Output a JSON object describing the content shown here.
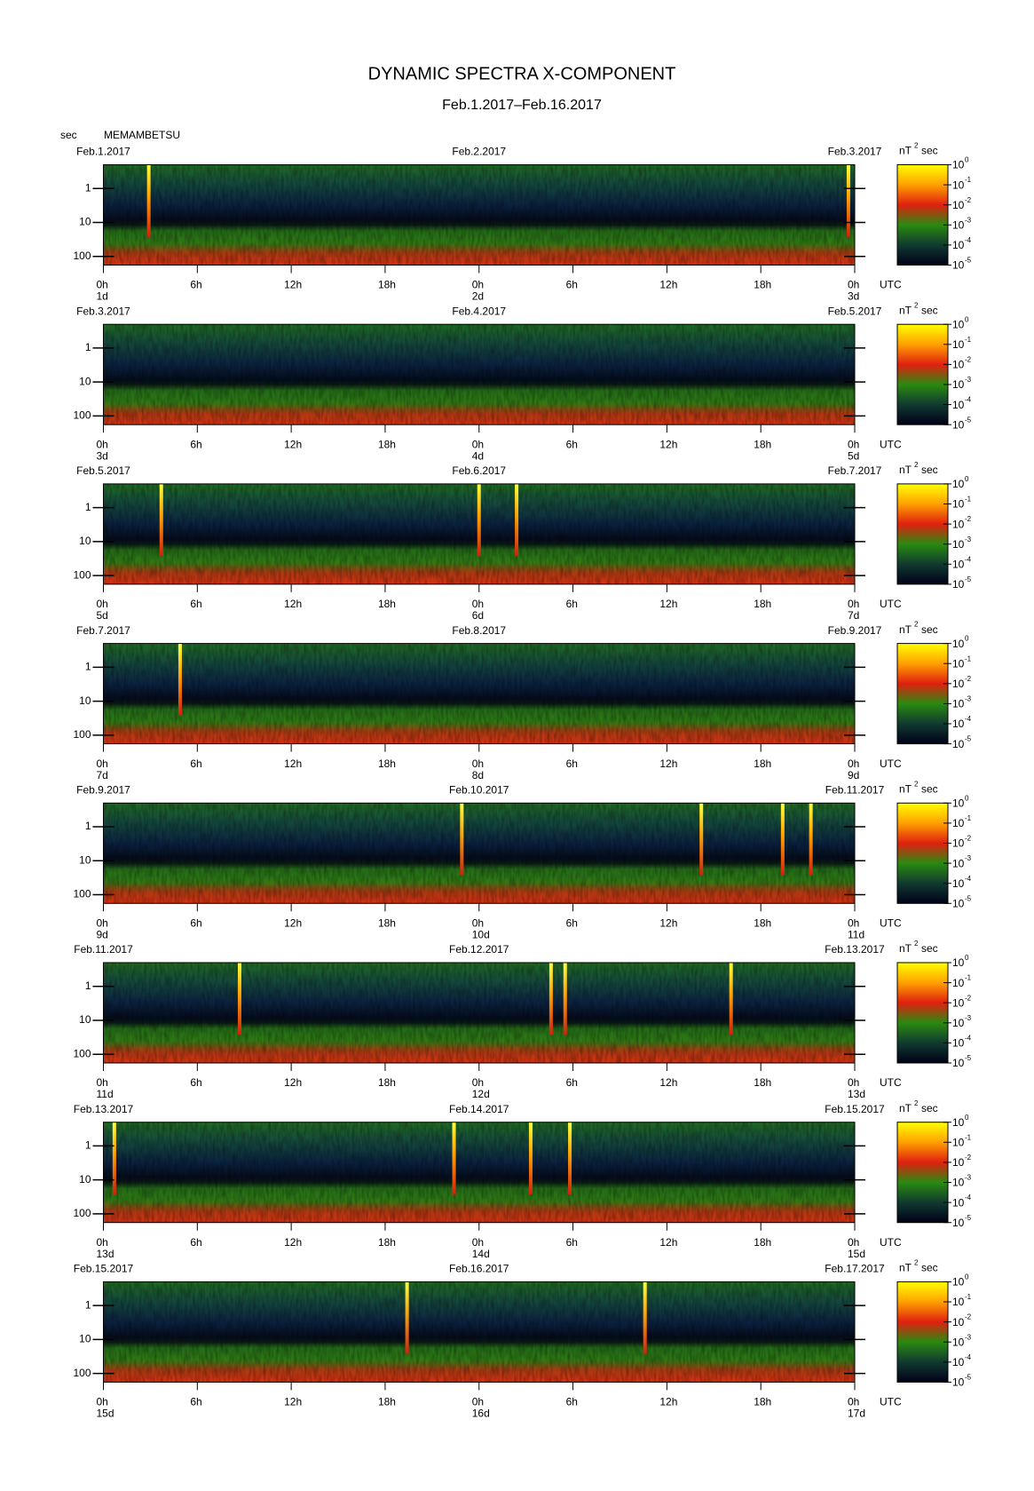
{
  "title": "DYNAMIC SPECTRA X-COMPONENT",
  "subtitle": "Feb.1.2017–Feb.16.2017",
  "y_unit": "sec",
  "station": "MEMAMBETSU",
  "colorbar": {
    "unit": "nT",
    "unit_exp": "2",
    "unit_tail": "sec",
    "scale": "log",
    "lim": [
      1e-05,
      1
    ],
    "ticks": [
      {
        "value": 1,
        "base": "10",
        "exp": "0"
      },
      {
        "value": 0.1,
        "base": "10",
        "exp": "-1"
      },
      {
        "value": 0.01,
        "base": "10",
        "exp": "-2"
      },
      {
        "value": 0.001,
        "base": "10",
        "exp": "-3"
      },
      {
        "value": 0.0001,
        "base": "10",
        "exp": "-4"
      },
      {
        "value": 1e-05,
        "base": "10",
        "exp": "-5"
      }
    ]
  },
  "chart_data": [
    {
      "type": "spectrogram",
      "dates": [
        "Feb.1.2017",
        "Feb.2.2017",
        "Feb.3.2017"
      ],
      "xlim": [
        0,
        48
      ],
      "xticks": [
        {
          "value": 0,
          "label": "0h"
        },
        {
          "value": 6,
          "label": "6h"
        },
        {
          "value": 12,
          "label": "12h"
        },
        {
          "value": 18,
          "label": "18h"
        },
        {
          "value": 24,
          "label": "0h"
        },
        {
          "value": 30,
          "label": "6h"
        },
        {
          "value": 36,
          "label": "12h"
        },
        {
          "value": 42,
          "label": "18h"
        },
        {
          "value": 48,
          "label": "0h"
        }
      ],
      "x_unit": "UTC",
      "day_ticks": [
        {
          "value": 0,
          "label": "1d"
        },
        {
          "value": 24,
          "label": "2d"
        },
        {
          "value": 48,
          "label": "3d"
        }
      ],
      "ylim": [
        0.2,
        180
      ],
      "yticks": [
        1,
        10,
        100
      ],
      "log_y": true,
      "events": [
        2.9,
        47.6
      ]
    },
    {
      "type": "spectrogram",
      "dates": [
        "Feb.3.2017",
        "Feb.4.2017",
        "Feb.5.2017"
      ],
      "xlim": [
        0,
        48
      ],
      "xticks": [
        {
          "value": 0,
          "label": "0h"
        },
        {
          "value": 6,
          "label": "6h"
        },
        {
          "value": 12,
          "label": "12h"
        },
        {
          "value": 18,
          "label": "18h"
        },
        {
          "value": 24,
          "label": "0h"
        },
        {
          "value": 30,
          "label": "6h"
        },
        {
          "value": 36,
          "label": "12h"
        },
        {
          "value": 42,
          "label": "18h"
        },
        {
          "value": 48,
          "label": "0h"
        }
      ],
      "x_unit": "UTC",
      "day_ticks": [
        {
          "value": 0,
          "label": "3d"
        },
        {
          "value": 24,
          "label": "4d"
        },
        {
          "value": 48,
          "label": "5d"
        }
      ],
      "ylim": [
        0.2,
        180
      ],
      "yticks": [
        1,
        10,
        100
      ],
      "log_y": true,
      "events": []
    },
    {
      "type": "spectrogram",
      "dates": [
        "Feb.5.2017",
        "Feb.6.2017",
        "Feb.7.2017"
      ],
      "xlim": [
        0,
        48
      ],
      "xticks": [
        {
          "value": 0,
          "label": "0h"
        },
        {
          "value": 6,
          "label": "6h"
        },
        {
          "value": 12,
          "label": "12h"
        },
        {
          "value": 18,
          "label": "18h"
        },
        {
          "value": 24,
          "label": "0h"
        },
        {
          "value": 30,
          "label": "6h"
        },
        {
          "value": 36,
          "label": "12h"
        },
        {
          "value": 42,
          "label": "18h"
        },
        {
          "value": 48,
          "label": "0h"
        }
      ],
      "x_unit": "UTC",
      "day_ticks": [
        {
          "value": 0,
          "label": "5d"
        },
        {
          "value": 24,
          "label": "6d"
        },
        {
          "value": 48,
          "label": "7d"
        }
      ],
      "ylim": [
        0.2,
        180
      ],
      "yticks": [
        1,
        10,
        100
      ],
      "log_y": true,
      "events": [
        3.7,
        24.0,
        26.4
      ]
    },
    {
      "type": "spectrogram",
      "dates": [
        "Feb.7.2017",
        "Feb.8.2017",
        "Feb.9.2017"
      ],
      "xlim": [
        0,
        48
      ],
      "xticks": [
        {
          "value": 0,
          "label": "0h"
        },
        {
          "value": 6,
          "label": "6h"
        },
        {
          "value": 12,
          "label": "12h"
        },
        {
          "value": 18,
          "label": "18h"
        },
        {
          "value": 24,
          "label": "0h"
        },
        {
          "value": 30,
          "label": "6h"
        },
        {
          "value": 36,
          "label": "12h"
        },
        {
          "value": 42,
          "label": "18h"
        },
        {
          "value": 48,
          "label": "0h"
        }
      ],
      "x_unit": "UTC",
      "day_ticks": [
        {
          "value": 0,
          "label": "7d"
        },
        {
          "value": 24,
          "label": "8d"
        },
        {
          "value": 48,
          "label": "9d"
        }
      ],
      "ylim": [
        0.2,
        180
      ],
      "yticks": [
        1,
        10,
        100
      ],
      "log_y": true,
      "events": [
        4.9
      ]
    },
    {
      "type": "spectrogram",
      "dates": [
        "Feb.9.2017",
        "Feb.10.2017",
        "Feb.11.2017"
      ],
      "xlim": [
        0,
        48
      ],
      "xticks": [
        {
          "value": 0,
          "label": "0h"
        },
        {
          "value": 6,
          "label": "6h"
        },
        {
          "value": 12,
          "label": "12h"
        },
        {
          "value": 18,
          "label": "18h"
        },
        {
          "value": 24,
          "label": "0h"
        },
        {
          "value": 30,
          "label": "6h"
        },
        {
          "value": 36,
          "label": "12h"
        },
        {
          "value": 42,
          "label": "18h"
        },
        {
          "value": 48,
          "label": "0h"
        }
      ],
      "x_unit": "UTC",
      "day_ticks": [
        {
          "value": 0,
          "label": "9d"
        },
        {
          "value": 24,
          "label": "10d"
        },
        {
          "value": 48,
          "label": "11d"
        }
      ],
      "ylim": [
        0.2,
        180
      ],
      "yticks": [
        1,
        10,
        100
      ],
      "log_y": true,
      "events": [
        22.9,
        38.2,
        43.4,
        45.2
      ]
    },
    {
      "type": "spectrogram",
      "dates": [
        "Feb.11.2017",
        "Feb.12.2017",
        "Feb.13.2017"
      ],
      "xlim": [
        0,
        48
      ],
      "xticks": [
        {
          "value": 0,
          "label": "0h"
        },
        {
          "value": 6,
          "label": "6h"
        },
        {
          "value": 12,
          "label": "12h"
        },
        {
          "value": 18,
          "label": "18h"
        },
        {
          "value": 24,
          "label": "0h"
        },
        {
          "value": 30,
          "label": "6h"
        },
        {
          "value": 36,
          "label": "12h"
        },
        {
          "value": 42,
          "label": "18h"
        },
        {
          "value": 48,
          "label": "0h"
        }
      ],
      "x_unit": "UTC",
      "day_ticks": [
        {
          "value": 0,
          "label": "11d"
        },
        {
          "value": 24,
          "label": "12d"
        },
        {
          "value": 48,
          "label": "13d"
        }
      ],
      "ylim": [
        0.2,
        180
      ],
      "yticks": [
        1,
        10,
        100
      ],
      "log_y": true,
      "events": [
        8.7,
        28.6,
        29.5,
        40.1
      ]
    },
    {
      "type": "spectrogram",
      "dates": [
        "Feb.13.2017",
        "Feb.14.2017",
        "Feb.15.2017"
      ],
      "xlim": [
        0,
        48
      ],
      "xticks": [
        {
          "value": 0,
          "label": "0h"
        },
        {
          "value": 6,
          "label": "6h"
        },
        {
          "value": 12,
          "label": "12h"
        },
        {
          "value": 18,
          "label": "18h"
        },
        {
          "value": 24,
          "label": "0h"
        },
        {
          "value": 30,
          "label": "6h"
        },
        {
          "value": 36,
          "label": "12h"
        },
        {
          "value": 42,
          "label": "18h"
        },
        {
          "value": 48,
          "label": "0h"
        }
      ],
      "x_unit": "UTC",
      "day_ticks": [
        {
          "value": 0,
          "label": "13d"
        },
        {
          "value": 24,
          "label": "14d"
        },
        {
          "value": 48,
          "label": "15d"
        }
      ],
      "ylim": [
        0.2,
        180
      ],
      "yticks": [
        1,
        10,
        100
      ],
      "log_y": true,
      "events": [
        0.7,
        22.4,
        27.3,
        29.8
      ]
    },
    {
      "type": "spectrogram",
      "dates": [
        "Feb.15.2017",
        "Feb.16.2017",
        "Feb.17.2017"
      ],
      "xlim": [
        0,
        48
      ],
      "xticks": [
        {
          "value": 0,
          "label": "0h"
        },
        {
          "value": 6,
          "label": "6h"
        },
        {
          "value": 12,
          "label": "12h"
        },
        {
          "value": 18,
          "label": "18h"
        },
        {
          "value": 24,
          "label": "0h"
        },
        {
          "value": 30,
          "label": "6h"
        },
        {
          "value": 36,
          "label": "12h"
        },
        {
          "value": 42,
          "label": "18h"
        },
        {
          "value": 48,
          "label": "0h"
        }
      ],
      "x_unit": "UTC",
      "day_ticks": [
        {
          "value": 0,
          "label": "15d"
        },
        {
          "value": 24,
          "label": "16d"
        },
        {
          "value": 48,
          "label": "17d"
        }
      ],
      "ylim": [
        0.2,
        180
      ],
      "yticks": [
        1,
        10,
        100
      ],
      "log_y": true,
      "events": [
        19.4,
        34.6
      ]
    }
  ]
}
